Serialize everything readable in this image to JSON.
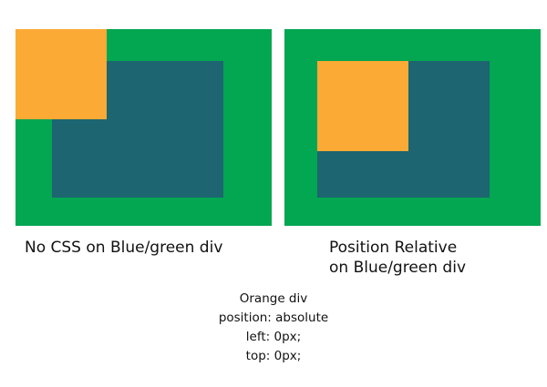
{
  "colors": {
    "green": "#03a651",
    "blue_green": "#1d6571",
    "orange": "#fbaa35"
  },
  "captions": {
    "left": "No CSS on Blue/green div",
    "right_line1": "Position Relative",
    "right_line2": "on Blue/green div"
  },
  "code_note": {
    "line1": "Orange div",
    "line2": "position: absolute",
    "line3": "left: 0px;",
    "line4": "top: 0px;"
  }
}
